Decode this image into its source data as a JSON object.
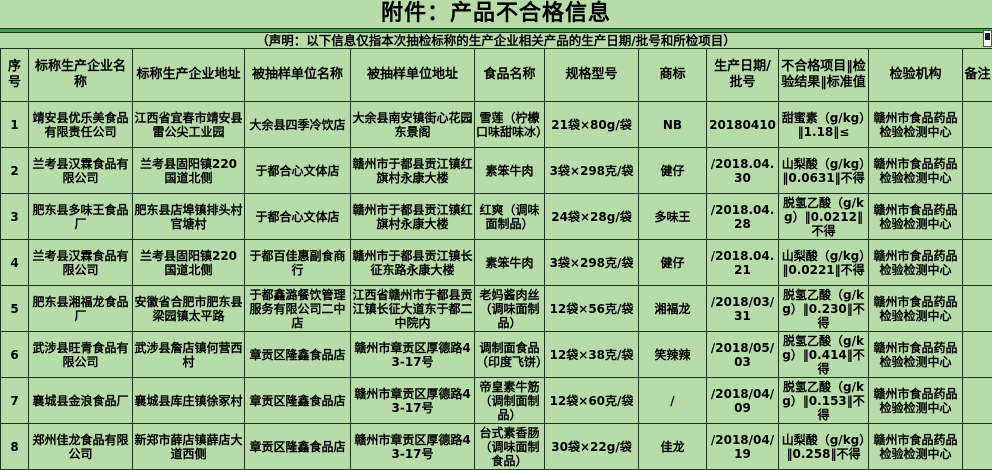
{
  "title": "附件：产品不合格信息",
  "declaration": "（声明：以下信息仅指本次抽检标称的生产企业相关产品的生产日期/批号和所检项目）",
  "colors": {
    "background": "#b7dcaa",
    "border": "#1c331c",
    "separator": "#46a046"
  },
  "table": {
    "headers": [
      "序号",
      "标称生产企业名称",
      "标称生产企业地址",
      "被抽样单位名称",
      "被抽样单位地址",
      "食品名称",
      "规格型号",
      "商标",
      "生产日期/批号",
      "不合格项目‖检验结果‖标准值",
      "检验机构",
      "备注"
    ],
    "rows": [
      [
        "1",
        "靖安县优乐美食品有限责任公司",
        "江西省宜春市靖安县雷公尖工业园",
        "大余县四季冷饮店",
        "大余县南安镇街心花园东景阁",
        "雪莲（柠檬口味甜味冰）",
        "21袋×80g/袋",
        "NB",
        "20180410",
        "甜蜜素（g/kg）‖1.18‖≤",
        "赣州市食品药品检验检测中心",
        ""
      ],
      [
        "2",
        "兰考县汉霖食品有限公司",
        "兰考县固阳镇220国道北侧",
        "于都合心文体店",
        "赣州市于都县贡江镇红旗村永康大楼",
        "素笨牛肉",
        "3袋×298克/袋",
        "健仔",
        "/2018.04.30",
        "山梨酸（g/kg）‖0.0631‖不得",
        "赣州市食品药品检验检测中心",
        ""
      ],
      [
        "3",
        "肥东县多味王食品厂",
        "肥东县店埠镇排头村官塘村",
        "于都合心文体店",
        "赣州市于都县贡江镇红旗村永康大楼",
        "红爽（调味面制品）",
        "24袋×28g/袋",
        "多味王",
        "/2018.04.28",
        "脱氢乙酸（g/kg）‖0.0212‖不得",
        "赣州市食品药品检验检测中心",
        ""
      ],
      [
        "4",
        "兰考县汉霖食品有限公司",
        "兰考县固阳镇220国道北侧",
        "于都百佳惠副食商行",
        "赣州市于都县贡江镇长征东路永康大楼",
        "素笨牛肉",
        "3袋×298克/袋",
        "健仔",
        "/2018.04.21",
        "山梨酸（g/kg）‖0.0221‖不得",
        "赣州市食品药品检验检测中心",
        ""
      ],
      [
        "5",
        "肥东县湘福龙食品厂",
        "安徽省合肥市肥东县梁园镇太平路",
        "于都鑫潞餐饮管理服务有限公司二中店",
        "江西省赣州市于都县贡江镇长征大道东于都二中院内",
        "老妈酱肉丝（调味面制品）",
        "12袋×56克/袋",
        "湘福龙",
        "/2018/03/31",
        "脱氢乙酸（g/kg）‖0.230‖不得",
        "赣州市食品药品检验检测中心",
        ""
      ],
      [
        "6",
        "武涉县旺青食品有限公司",
        "武涉县詹店镇何营西村",
        "章贡区隆鑫食品店",
        "赣州市章贡区厚德路43-17号",
        "调制面食品（印度飞饼）",
        "12袋×38克/袋",
        "笑辣辣",
        "/2018/05/03",
        "脱氢乙酸（g/kg）‖0.414‖不得",
        "赣州市食品药品检验检测中心",
        ""
      ],
      [
        "7",
        "襄城县金浪食品厂",
        "襄城县库庄镇徐冢村",
        "章贡区隆鑫食品店",
        "赣州市章贡区厚德路43-17号",
        "帝皇素牛筋（调制面制品）",
        "12袋×60克/袋",
        "/",
        "/2018/04/09",
        "脱氢乙酸（g/kg）‖0.153‖不得",
        "赣州市食品药品检验检测中心",
        ""
      ],
      [
        "8",
        "郑州佳龙食品有限公司",
        "新郑市薛店镇薛店大道西侧",
        "章贡区隆鑫食品店",
        "赣州市章贡区厚德路43-17号",
        "台式素香肠（调味面制食品）",
        "30袋×22g/袋",
        "佳龙",
        "/2018/04/19",
        "山梨酸（g/kg）‖0.258‖不得",
        "赣州市食品药品检验检测中心",
        ""
      ]
    ]
  }
}
